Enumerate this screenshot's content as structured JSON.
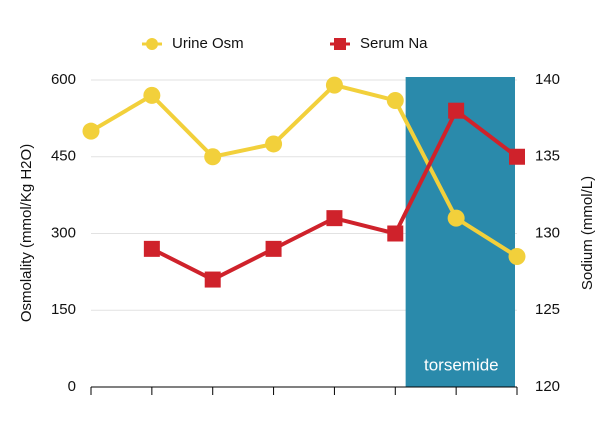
{
  "chart_data": {
    "type": "line",
    "categories": [
      null,
      null,
      null,
      null,
      null,
      null,
      null,
      null
    ],
    "series": [
      {
        "name": "Urine Osm",
        "color": "#f2d03b",
        "marker": "circle",
        "values": [
          500,
          570,
          450,
          475,
          590,
          560,
          330,
          255
        ]
      },
      {
        "name": "Serum Na",
        "color": "#cf222b",
        "marker": "square",
        "axis": "y2",
        "values": [
          null,
          129,
          127,
          129,
          131,
          130,
          138,
          135
        ]
      }
    ],
    "ylabel": "Osmolality (mmol/Kg H2O)",
    "y2label": "Sodium (mmol/L)",
    "ylim": [
      0,
      600
    ],
    "yticks": [
      0,
      150,
      300,
      450,
      600
    ],
    "y2lim": [
      120,
      140
    ],
    "y2ticks": [
      120,
      125,
      130,
      135,
      140
    ],
    "grid": true,
    "legend": "top",
    "annotations": [
      {
        "text": "torsemide",
        "color": "#2a8aab"
      }
    ]
  }
}
